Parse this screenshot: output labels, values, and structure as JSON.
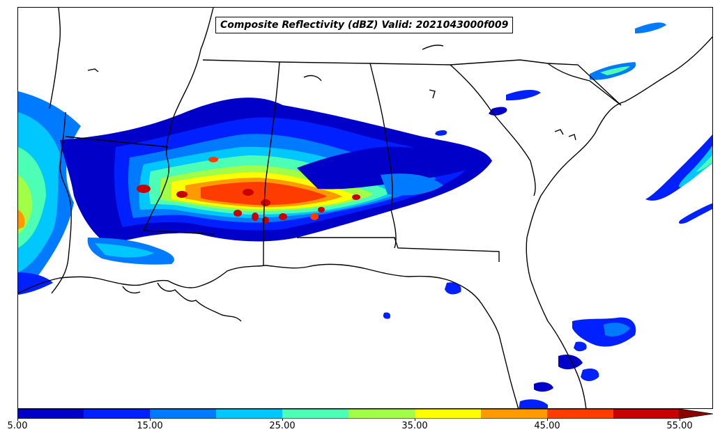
{
  "title": "Composite Reflectivity (dBZ) Valid: 2021043000f009",
  "map": {
    "field": "Composite Reflectivity",
    "units": "dBZ",
    "region": "Southeastern United States",
    "features": [
      "state-borders",
      "coastlines"
    ]
  },
  "colorbar": {
    "min": 5,
    "max": 55,
    "extend": "max",
    "tick_labels": [
      "5.00",
      "15.00",
      "25.00",
      "35.00",
      "45.00",
      "55.00"
    ],
    "tick_values": [
      5,
      15,
      25,
      35,
      45,
      55
    ],
    "levels": [
      5,
      10,
      15,
      20,
      25,
      30,
      35,
      40,
      45,
      50,
      55
    ],
    "colors": [
      "#0000c8",
      "#0020ff",
      "#007bff",
      "#00c8ff",
      "#4dffb4",
      "#a0ff46",
      "#ffff00",
      "#ff9a00",
      "#ff3c00",
      "#c80000"
    ],
    "extend_color": "#8a0000"
  }
}
